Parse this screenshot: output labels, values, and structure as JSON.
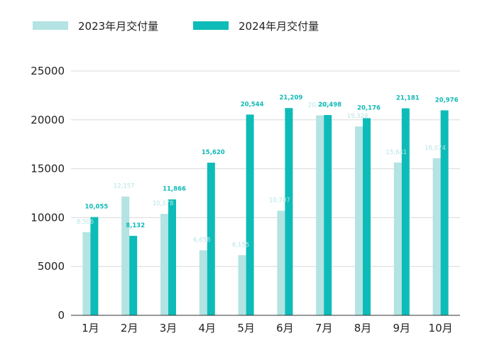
{
  "chart_data": {
    "type": "bar",
    "categories": [
      "1月",
      "2月",
      "3月",
      "4月",
      "5月",
      "6月",
      "7月",
      "8月",
      "9月",
      "10月"
    ],
    "series": [
      {
        "name": "2023年月交付量",
        "color": "#b3e3e3",
        "values": [
          8506,
          12157,
          10378,
          6658,
          6155,
          10707,
          20463,
          19329,
          15641,
          16074
        ],
        "labels": [
          "8,506",
          "12,157",
          "10,378",
          "6,658",
          "6,155",
          "10,707",
          "20,463",
          "19,329",
          "15,641",
          "16,074"
        ]
      },
      {
        "name": "2024年月交付量",
        "color": "#0dbcb8",
        "values": [
          10055,
          8132,
          11866,
          15620,
          20544,
          21209,
          20498,
          20176,
          21181,
          20976
        ],
        "labels": [
          "10,055",
          "8,132",
          "11,866",
          "15,620",
          "20,544",
          "21,209",
          "20,498",
          "20,176",
          "21,181",
          "20,976"
        ]
      }
    ],
    "ylim": [
      0,
      25000
    ],
    "yticks": [
      "0",
      "5000",
      "10000",
      "15000",
      "20000",
      "25000"
    ],
    "grid": true,
    "legend_position": "top-left"
  }
}
